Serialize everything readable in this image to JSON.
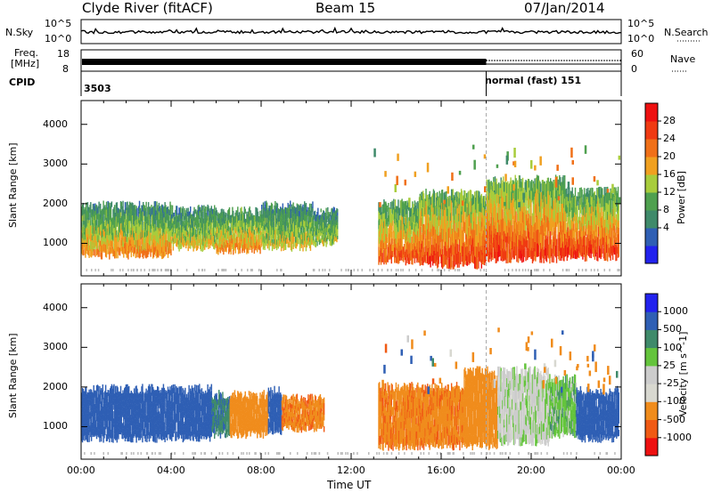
{
  "header": {
    "station": "Clyde River (fitACF)",
    "beam": "Beam 15",
    "date": "07/Jan/2014"
  },
  "status_panels": {
    "nsky_label": "N.Sky",
    "nsearch_label": "N.Search",
    "log_top": "10^5",
    "log_bottom": "10^0",
    "freq_label_line1": "Freq.",
    "freq_label_line2": "[MHz]",
    "freq_ticks": [
      "18",
      "8"
    ],
    "nave_ticks": [
      "60",
      "0"
    ],
    "nave_label": "Nave",
    "cpid_label": "CPID",
    "cpid_left": "3503",
    "cpid_right": "normal (fast) 151"
  },
  "colors": {
    "power": [
      "#2222ee",
      "#2f5fb4",
      "#3f8a6a",
      "#4fa04f",
      "#a8cc3c",
      "#f0a020",
      "#f07018",
      "#f03a12",
      "#ee1010"
    ],
    "velocity": [
      "#ee1010",
      "#f05a14",
      "#f08c1c",
      "#d8d8d0",
      "#cccccc",
      "#64c43c",
      "#3f8a6a",
      "#2f5fb4",
      "#2222ee"
    ],
    "ground_scatter": "#a0a0a0"
  },
  "chart_data": [
    {
      "type": "heatmap",
      "name": "power",
      "xlabel": "Time UT",
      "ylabel": "Slant Range [km]",
      "colorbar_label": "Power [dB]",
      "colorbar_ticks": [
        "28",
        "24",
        "20",
        "16",
        "12",
        "8",
        "4"
      ],
      "xlim_hours": [
        0,
        24
      ],
      "ylim_km": [
        180,
        4600
      ],
      "x_ticks": [
        "00:00",
        "04:00",
        "08:00",
        "12:00",
        "16:00",
        "20:00",
        "00:00"
      ],
      "y_ticks": [
        1000,
        2000,
        3000,
        4000
      ],
      "mode_change_hour": 18.0,
      "segments": [
        {
          "t0": 0.0,
          "t1": 4.0,
          "r0": 700,
          "r1": 1950,
          "v0": 24,
          "v1": 8
        },
        {
          "t0": 4.0,
          "t1": 6.0,
          "r0": 900,
          "r1": 1850,
          "v0": 20,
          "v1": 8
        },
        {
          "t0": 6.0,
          "t1": 8.0,
          "r0": 800,
          "r1": 1800,
          "v0": 24,
          "v1": 10
        },
        {
          "t0": 8.0,
          "t1": 10.3,
          "r0": 900,
          "r1": 1950,
          "v0": 20,
          "v1": 8
        },
        {
          "t0": 10.3,
          "t1": 11.4,
          "r0": 1000,
          "r1": 1800,
          "v0": 18,
          "v1": 8
        },
        {
          "t0": 13.2,
          "t1": 15.0,
          "r0": 550,
          "r1": 2000,
          "v0": 28,
          "v1": 10
        },
        {
          "t0": 15.0,
          "t1": 18.0,
          "r0": 450,
          "r1": 2250,
          "v0": 30,
          "v1": 12
        },
        {
          "t0": 18.0,
          "t1": 21.5,
          "r0": 600,
          "r1": 2600,
          "v0": 30,
          "v1": 12
        },
        {
          "t0": 21.5,
          "t1": 23.9,
          "r0": 650,
          "r1": 2300,
          "v0": 30,
          "v1": 10
        }
      ]
    },
    {
      "type": "heatmap",
      "name": "velocity",
      "xlabel": "Time UT",
      "ylabel": "Slant Range [km]",
      "colorbar_label": "Velocity [m s^-1]",
      "colorbar_ticks": [
        "1000",
        "500",
        "100",
        "25",
        "-25",
        "-100",
        "-500",
        "-1000"
      ],
      "xlim_hours": [
        0,
        24
      ],
      "ylim_km": [
        180,
        4600
      ],
      "x_ticks": [
        "00:00",
        "04:00",
        "08:00",
        "12:00",
        "16:00",
        "20:00",
        "00:00"
      ],
      "y_ticks": [
        1000,
        2000,
        3000,
        4000
      ],
      "mode_change_hour": 18.0,
      "segments": [
        {
          "t0": 0.0,
          "t1": 5.8,
          "r0": 700,
          "r1": 1950,
          "v": 300
        },
        {
          "t0": 5.8,
          "t1": 6.6,
          "r0": 800,
          "r1": 1800,
          "v": 80
        },
        {
          "t0": 6.6,
          "t1": 8.3,
          "r0": 800,
          "r1": 1800,
          "v": -300
        },
        {
          "t0": 8.3,
          "t1": 8.9,
          "r0": 900,
          "r1": 1900,
          "v": 300
        },
        {
          "t0": 8.9,
          "t1": 10.8,
          "r0": 950,
          "r1": 1700,
          "v": -400
        },
        {
          "t0": 13.2,
          "t1": 17.0,
          "r0": 500,
          "r1": 2000,
          "v": -400
        },
        {
          "t0": 17.0,
          "t1": 18.5,
          "r0": 500,
          "r1": 2400,
          "v": -200
        },
        {
          "t0": 18.5,
          "t1": 20.8,
          "r0": 600,
          "r1": 2400,
          "v": -10
        },
        {
          "t0": 20.8,
          "t1": 22.0,
          "r0": 800,
          "r1": 2200,
          "v": 10
        },
        {
          "t0": 22.0,
          "t1": 23.9,
          "r0": 700,
          "r1": 1900,
          "v": 300
        }
      ]
    }
  ]
}
